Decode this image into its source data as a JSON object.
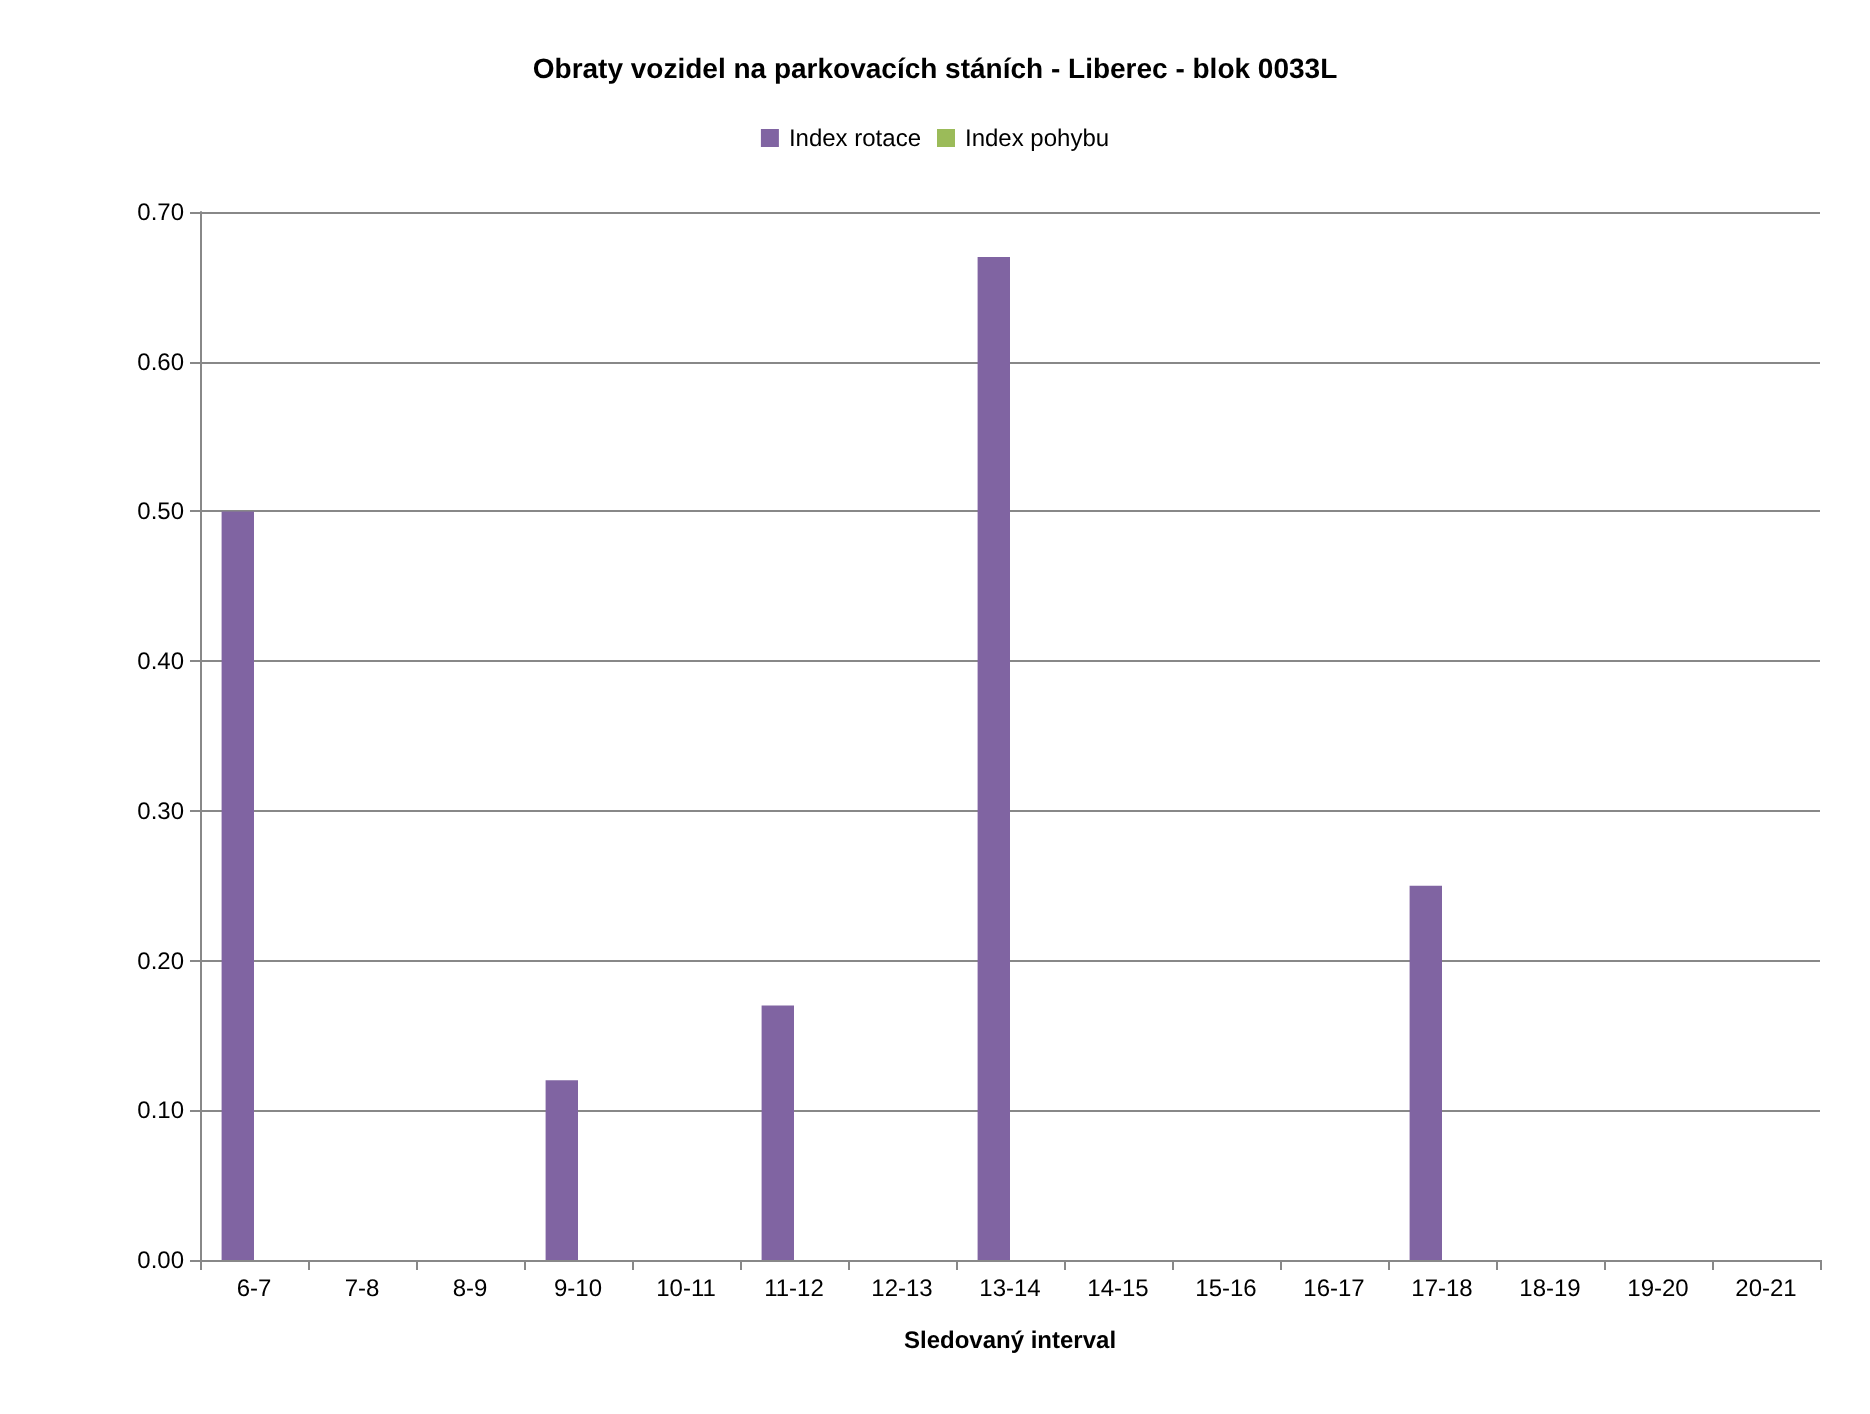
{
  "chart_data": {
    "type": "bar",
    "title": "Obraty vozidel na parkovacích stáních - Liberec - blok 0033L",
    "xlabel": "Sledovaný interval",
    "categories": [
      "6-7",
      "7-8",
      "8-9",
      "9-10",
      "10-11",
      "11-12",
      "12-13",
      "13-14",
      "14-15",
      "15-16",
      "16-17",
      "17-18",
      "18-19",
      "19-20",
      "20-21"
    ],
    "series": [
      {
        "name": "Index rotace",
        "color": "#8064a2",
        "values": [
          0.5,
          0,
          0,
          0.12,
          0,
          0.17,
          0,
          0.67,
          0,
          0,
          0,
          0.25,
          0,
          0,
          0
        ]
      },
      {
        "name": "Index pohybu",
        "color": "#9bbb59",
        "values": [
          0,
          0,
          0,
          0,
          0,
          0,
          0,
          0,
          0,
          0,
          0,
          0,
          0,
          0,
          0
        ]
      }
    ],
    "ylim": [
      0,
      0.7
    ],
    "yticks": [
      {
        "value": 0,
        "label": "0.00"
      },
      {
        "value": 0.1,
        "label": "0.10"
      },
      {
        "value": 0.2,
        "label": "0.20"
      },
      {
        "value": 0.3,
        "label": "0.30"
      },
      {
        "value": 0.4,
        "label": "0.40"
      },
      {
        "value": 0.5,
        "label": "0.50"
      },
      {
        "value": 0.6,
        "label": "0.60"
      },
      {
        "value": 0.7,
        "label": "0.70"
      }
    ],
    "grid": "y",
    "legend": "top"
  }
}
